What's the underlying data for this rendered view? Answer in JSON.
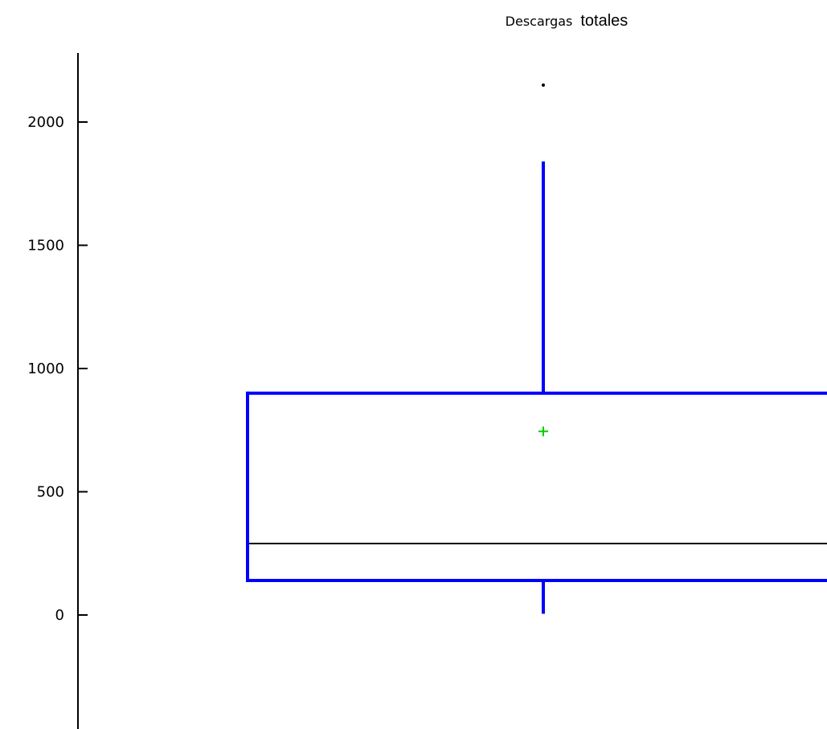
{
  "chart_data": {
    "type": "box",
    "title_parts": [
      "Descargas",
      "totales"
    ],
    "xlabel": "",
    "ylabel": "",
    "ylim": [
      -400,
      2300
    ],
    "yticks": [
      0,
      500,
      1000,
      1500,
      2000
    ],
    "box": {
      "whisker_low": 5,
      "q1": 140,
      "median": 290,
      "q3": 900,
      "whisker_high": 1840,
      "mean": 745,
      "outliers": [
        2150
      ]
    },
    "colors": {
      "box": "#0000ff",
      "median": "#000000",
      "mean": "#00cc00",
      "outlier": "#000000",
      "axis": "#000000"
    }
  }
}
